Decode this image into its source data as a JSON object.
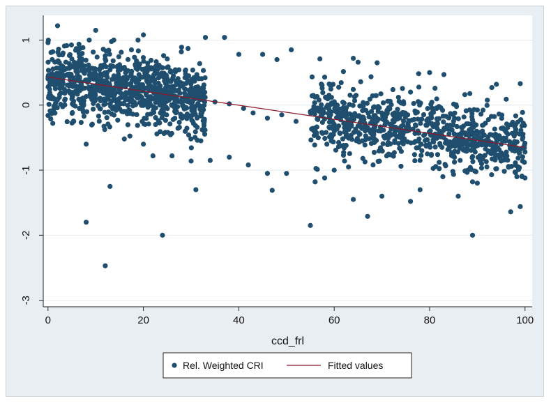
{
  "chart_data": {
    "type": "scatter",
    "title": "",
    "xlabel": "ccd_frl",
    "ylabel": "",
    "xlim": [
      -1,
      101.5
    ],
    "ylim": [
      -3.1,
      1.38
    ],
    "xticks": [
      0,
      20,
      40,
      60,
      80,
      100
    ],
    "xtick_labels": [
      "0",
      "20",
      "40",
      "60",
      "80",
      "100"
    ],
    "yticks": [
      1,
      0,
      -1,
      -2,
      -3
    ],
    "ytick_labels": [
      "1",
      "0",
      "-1",
      "-2",
      "-3"
    ],
    "grid": "horizontal",
    "legend_position": "bottom",
    "colors": {
      "points": "#1f4e6e",
      "fit_line": "#8b1a2b",
      "frame_background": "#e9eef2",
      "plot_background": "#ffffff",
      "grid": "#e4eaee"
    },
    "series": [
      {
        "name": "Rel. Weighted CRI",
        "type": "scatter",
        "description_points": "dense cloud of about 2000 observations; representative sample below",
        "points": [
          [
            2,
            1.22
          ],
          [
            10,
            1.15
          ],
          [
            20,
            1.08
          ],
          [
            33,
            1.04
          ],
          [
            37,
            1.04
          ],
          [
            45,
            0.78
          ],
          [
            51,
            0.85
          ],
          [
            57,
            0.71
          ],
          [
            69,
            0.65
          ],
          [
            64,
            0.72
          ],
          [
            8,
            -1.8
          ],
          [
            13,
            -1.25
          ],
          [
            12,
            -2.47
          ],
          [
            24,
            -2.0
          ],
          [
            31,
            -1.3
          ],
          [
            55,
            -1.85
          ],
          [
            67,
            -1.71
          ],
          [
            89,
            -2.0
          ],
          [
            89,
            -1.18
          ],
          [
            97,
            -1.64
          ],
          [
            99,
            -1.56
          ],
          [
            90,
            -1.2
          ],
          [
            86,
            -1.4
          ],
          [
            76,
            -1.48
          ],
          [
            64,
            -1.45
          ],
          [
            70,
            -1.4
          ],
          [
            78,
            -1.3
          ],
          [
            93,
            -1.07
          ],
          [
            96,
            -0.84
          ],
          [
            99,
            0.33
          ],
          [
            98,
            -0.57
          ],
          [
            94,
            0.32
          ],
          [
            83,
            0.47
          ],
          [
            80,
            0.5
          ],
          [
            76,
            0.2
          ],
          [
            65,
            0.66
          ],
          [
            58,
            0.43
          ],
          [
            48,
            0.7
          ],
          [
            40,
            0.78
          ],
          [
            28,
            0.89
          ],
          [
            15,
            0.62
          ],
          [
            25,
            0.71
          ],
          [
            5,
            0.71
          ],
          [
            1,
            0.82
          ],
          [
            0,
            0.96
          ],
          [
            1,
            -0.28
          ],
          [
            8,
            -0.6
          ],
          [
            16,
            -0.52
          ],
          [
            20,
            -0.6
          ],
          [
            22,
            -0.78
          ],
          [
            26,
            -0.78
          ],
          [
            30,
            -0.86
          ],
          [
            34,
            -0.85
          ],
          [
            38,
            -0.8
          ],
          [
            42,
            -0.92
          ],
          [
            46,
            -1.05
          ],
          [
            47,
            -1.31
          ],
          [
            50,
            -1.05
          ],
          [
            56,
            -1.18
          ],
          [
            58,
            -1.12
          ],
          [
            60,
            -1.0
          ],
          [
            63,
            -0.95
          ],
          [
            66,
            -0.82
          ],
          [
            71,
            -0.78
          ],
          [
            74,
            -0.94
          ],
          [
            78,
            -0.85
          ],
          [
            82,
            -0.88
          ],
          [
            85,
            -0.77
          ],
          [
            88,
            -1.0
          ],
          [
            92,
            -0.95
          ],
          [
            95,
            -0.86
          ],
          [
            100,
            -0.72
          ],
          [
            100,
            -1.12
          ],
          [
            3,
            0.35
          ],
          [
            6,
            0.55
          ],
          [
            9,
            0.48
          ],
          [
            12,
            0.32
          ],
          [
            14,
            0.4
          ],
          [
            18,
            0.25
          ],
          [
            21,
            0.34
          ],
          [
            24,
            0.18
          ],
          [
            27,
            0.22
          ],
          [
            29,
            0.08
          ],
          [
            32,
            0.12
          ],
          [
            35,
            0.05
          ],
          [
            38,
            0.02
          ],
          [
            41,
            -0.05
          ],
          [
            43,
            -0.12
          ],
          [
            46,
            -0.2
          ],
          [
            49,
            -0.15
          ],
          [
            52,
            -0.25
          ],
          [
            55,
            -0.1
          ],
          [
            59,
            -0.18
          ],
          [
            62,
            -0.28
          ],
          [
            65,
            -0.32
          ],
          [
            68,
            -0.22
          ],
          [
            72,
            -0.35
          ],
          [
            75,
            -0.4
          ],
          [
            79,
            -0.45
          ],
          [
            83,
            -0.5
          ],
          [
            87,
            -0.42
          ],
          [
            91,
            -0.55
          ],
          [
            95,
            -0.6
          ],
          [
            98,
            -0.4
          ]
        ]
      },
      {
        "name": "Fitted values",
        "type": "line",
        "points": [
          [
            0,
            0.43
          ],
          [
            100,
            -0.65
          ]
        ]
      }
    ]
  }
}
